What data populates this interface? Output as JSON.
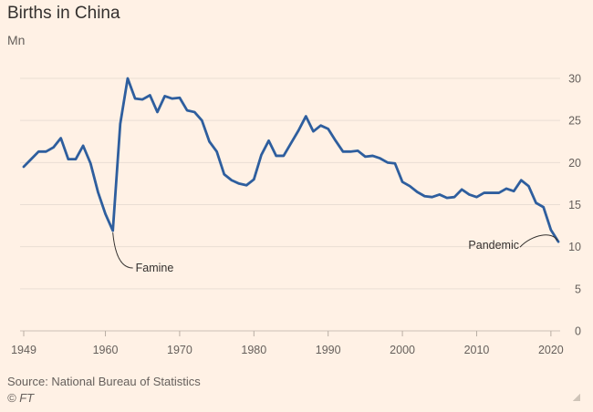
{
  "chart_data": {
    "type": "line",
    "title": "Births in China",
    "ylabel": "Mn",
    "xlim": [
      1949,
      2021
    ],
    "ylim": [
      0,
      30
    ],
    "grid": true,
    "x_ticks": [
      1949,
      1960,
      1970,
      1980,
      1990,
      2000,
      2010,
      2020
    ],
    "y_ticks": [
      0,
      5,
      10,
      15,
      20,
      25,
      30
    ],
    "line_color": "#2E5E9E",
    "series": [
      {
        "x": [
          1949,
          1950,
          1951,
          1952,
          1953,
          1954,
          1955,
          1956,
          1957,
          1958,
          1959,
          1960,
          1961,
          1962,
          1963,
          1964,
          1965,
          1966,
          1967,
          1968,
          1969,
          1970,
          1971,
          1972,
          1973,
          1974,
          1975,
          1976,
          1977,
          1978,
          1979,
          1980,
          1981,
          1982,
          1983,
          1984,
          1985,
          1986,
          1987,
          1988,
          1989,
          1990,
          1991,
          1992,
          1993,
          1994,
          1995,
          1996,
          1997,
          1998,
          1999,
          2000,
          2001,
          2002,
          2003,
          2004,
          2005,
          2006,
          2007,
          2008,
          2009,
          2010,
          2011,
          2012,
          2013,
          2014,
          2015,
          2016,
          2017,
          2018,
          2019,
          2020,
          2021
        ],
        "values": [
          19.5,
          20.4,
          21.3,
          21.3,
          21.8,
          22.9,
          20.4,
          20.4,
          22.0,
          19.9,
          16.5,
          13.9,
          11.9,
          24.6,
          30.0,
          27.6,
          27.5,
          28.0,
          26.0,
          27.9,
          27.6,
          27.7,
          26.2,
          26.0,
          25.0,
          22.5,
          21.3,
          18.6,
          17.9,
          17.5,
          17.3,
          18.0,
          20.9,
          22.6,
          20.8,
          20.8,
          22.3,
          23.8,
          25.5,
          23.7,
          24.4,
          24.0,
          22.6,
          21.3,
          21.3,
          21.4,
          20.7,
          20.8,
          20.5,
          20.0,
          19.9,
          17.7,
          17.2,
          16.5,
          16.0,
          15.9,
          16.2,
          15.8,
          15.9,
          16.8,
          16.2,
          15.9,
          16.4,
          16.4,
          16.4,
          16.9,
          16.6,
          17.9,
          17.2,
          15.2,
          14.7,
          12.0,
          10.6
        ]
      }
    ],
    "annotations": [
      {
        "label": "Famine",
        "x": 1961,
        "y": 11.9
      },
      {
        "label": "Pandemic",
        "x": 2021,
        "y": 10.6
      }
    ]
  },
  "source": "Source: National Bureau of Statistics",
  "credit": "© FT"
}
